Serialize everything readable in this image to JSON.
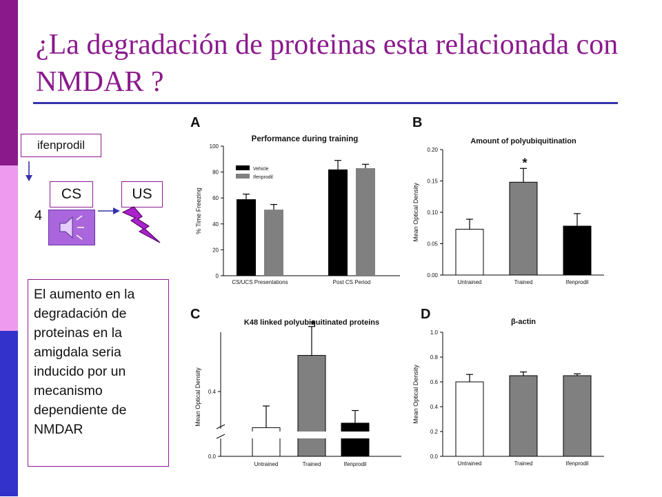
{
  "slide": {
    "title": "¿La degradación de proteinas esta relacionada con NMDAR ?",
    "colors": {
      "accent": "#8a1a8c",
      "sidebar_pink": "#ee9aee",
      "sidebar_blue": "#3333cc",
      "rule": "#3333aa"
    }
  },
  "diagram": {
    "drug_label": "ifenprodil",
    "cs_label": "CS",
    "us_label": "US",
    "number": "4",
    "icons": [
      "down-arrow-icon",
      "speaker-icon",
      "right-arrow-icon",
      "lightning-bolt-icon"
    ]
  },
  "conclusion_text": "El aumento en la degradación de proteinas en la amigdala seria inducido por un mecanismo dependiente de NMDAR",
  "chart_data": [
    {
      "panel": "A",
      "type": "bar",
      "title": "Performance during training",
      "xlabel": "",
      "ylabel": "% Time Freezing",
      "ylim": [
        0,
        100
      ],
      "yticks": [
        "0",
        "20",
        "40",
        "60",
        "80",
        "100"
      ],
      "categories": [
        "CS/UCS Presentations",
        "Post CS Period"
      ],
      "legend": "top-left",
      "series": [
        {
          "name": "Vehicle",
          "color": "#000000",
          "values": [
            59,
            82
          ],
          "errors": [
            4,
            7
          ]
        },
        {
          "name": "Ifenprodil",
          "color": "#808080",
          "values": [
            51,
            83
          ],
          "errors": [
            4,
            3
          ]
        }
      ]
    },
    {
      "panel": "B",
      "type": "bar",
      "title": "Amount of polyubiquitination",
      "xlabel": "",
      "ylabel": "Mean Optical Density",
      "ylim": [
        0,
        0.2
      ],
      "yticks": [
        "0.00",
        "0.05",
        "0.10",
        "0.15",
        "0.20"
      ],
      "categories": [
        "Untrained",
        "Trained",
        "Ifenprodil"
      ],
      "colors": [
        "#ffffff",
        "#808080",
        "#000000"
      ],
      "values": [
        0.073,
        0.148,
        0.078
      ],
      "errors": [
        0.016,
        0.022,
        0.02
      ],
      "annotation": "*"
    },
    {
      "panel": "C",
      "type": "bar",
      "title": "K48 linked polyubiquitinated proteins",
      "xlabel": "",
      "ylabel": "Mean Optical Density",
      "yticks": [
        "0.0",
        "0.4"
      ],
      "axis_break": true,
      "categories": [
        "Untrained",
        "Trained",
        "Ifenprodil"
      ],
      "colors": [
        "#ffffff",
        "#808080",
        "#000000"
      ],
      "values": [
        0.36,
        0.44,
        0.365
      ],
      "errors": [
        0.024,
        0.032,
        0.014
      ],
      "annotation": "*"
    },
    {
      "panel": "D",
      "type": "bar",
      "title": "β-actin",
      "xlabel": "",
      "ylabel": "Mean Optical Density",
      "ylim": [
        0,
        1
      ],
      "yticks": [
        "0.0",
        "0.2",
        "0.4",
        "0.6",
        "0.8",
        "1.0"
      ],
      "categories": [
        "Untrained",
        "Trained",
        "Ifenprodil"
      ],
      "colors": [
        "#ffffff",
        "#808080",
        "#808080"
      ],
      "values": [
        0.6,
        0.65,
        0.65
      ],
      "errors": [
        0.06,
        0.03,
        0.015
      ]
    }
  ]
}
